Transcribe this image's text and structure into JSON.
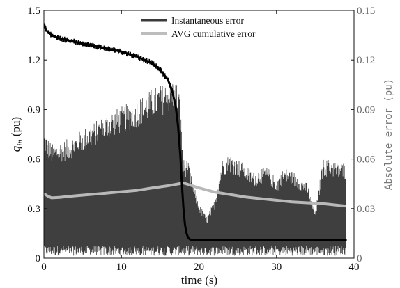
{
  "chart_data": {
    "type": "line",
    "xlabel": "time (s)",
    "ylabel_left_main": "q",
    "ylabel_left_sub": "in",
    "ylabel_left_unit": " (pu)",
    "ylabel_right": "Absolute error (pu)",
    "xlim": [
      0,
      40
    ],
    "ylim_left": [
      0,
      1.5
    ],
    "ylim_right": [
      0,
      0.15
    ],
    "x_ticks": [
      "0",
      "10",
      "20",
      "30",
      "40"
    ],
    "y_ticks_left": [
      "0",
      "0.3",
      "0.6",
      "0.9",
      "1.2",
      "1.5"
    ],
    "y_ticks_right": [
      "0",
      "0.03",
      "0.06",
      "0.09",
      "0.12",
      "0.15"
    ],
    "legend_position": "top-center",
    "series": [
      {
        "name": "Instantaneous error",
        "axis": "right",
        "color": "#3f3f3f",
        "x": [
          0,
          1,
          3,
          5,
          7,
          9,
          11,
          13,
          14,
          15,
          16,
          17,
          17.5,
          18,
          18.5,
          19,
          20,
          21,
          22,
          23,
          24,
          25,
          26,
          27,
          28,
          29,
          30,
          31,
          32,
          33,
          34,
          35,
          36,
          37,
          38,
          39
        ],
        "max": [
          0.078,
          0.069,
          0.072,
          0.078,
          0.084,
          0.09,
          0.094,
          0.099,
          0.103,
          0.105,
          0.107,
          0.109,
          0.1,
          0.06,
          0.06,
          0.05,
          0.033,
          0.025,
          0.035,
          0.06,
          0.063,
          0.06,
          0.057,
          0.052,
          0.055,
          0.055,
          0.048,
          0.055,
          0.053,
          0.05,
          0.045,
          0.028,
          0.06,
          0.06,
          0.058,
          0.058
        ]
      },
      {
        "name": "AVG cumulative error",
        "axis": "right",
        "color": "#b8b8b8",
        "x": [
          0,
          0.5,
          1,
          2,
          4,
          6,
          8,
          10,
          12,
          14,
          16,
          18,
          20,
          22,
          24,
          26,
          28,
          30,
          32,
          34,
          36,
          38,
          39
        ],
        "y": [
          0.039,
          0.0375,
          0.0365,
          0.0368,
          0.0377,
          0.0385,
          0.0393,
          0.0402,
          0.041,
          0.0425,
          0.0438,
          0.0455,
          0.0425,
          0.04,
          0.0385,
          0.037,
          0.036,
          0.035,
          0.034,
          0.0335,
          0.033,
          0.032,
          0.0315
        ]
      },
      {
        "name": "q_in",
        "axis": "left",
        "color": "#000000",
        "x": [
          0,
          0.3,
          1,
          2,
          4,
          6,
          8,
          10,
          12,
          14,
          15,
          16,
          16.5,
          17,
          17.3,
          17.6,
          17.8,
          18.0,
          18.2,
          18.4,
          18.6,
          18.8,
          19,
          20,
          25,
          30,
          35,
          39
        ],
        "y": [
          1.42,
          1.38,
          1.35,
          1.33,
          1.31,
          1.29,
          1.27,
          1.25,
          1.22,
          1.18,
          1.14,
          1.08,
          1.02,
          0.92,
          0.8,
          0.62,
          0.45,
          0.3,
          0.2,
          0.15,
          0.125,
          0.115,
          0.11,
          0.11,
          0.11,
          0.11,
          0.11,
          0.11
        ]
      }
    ]
  },
  "legend": {
    "items": [
      {
        "label": "Instantaneous error",
        "color": "#3a3a3a"
      },
      {
        "label": "AVG cumulative error",
        "color": "#bdbdbd"
      }
    ]
  }
}
